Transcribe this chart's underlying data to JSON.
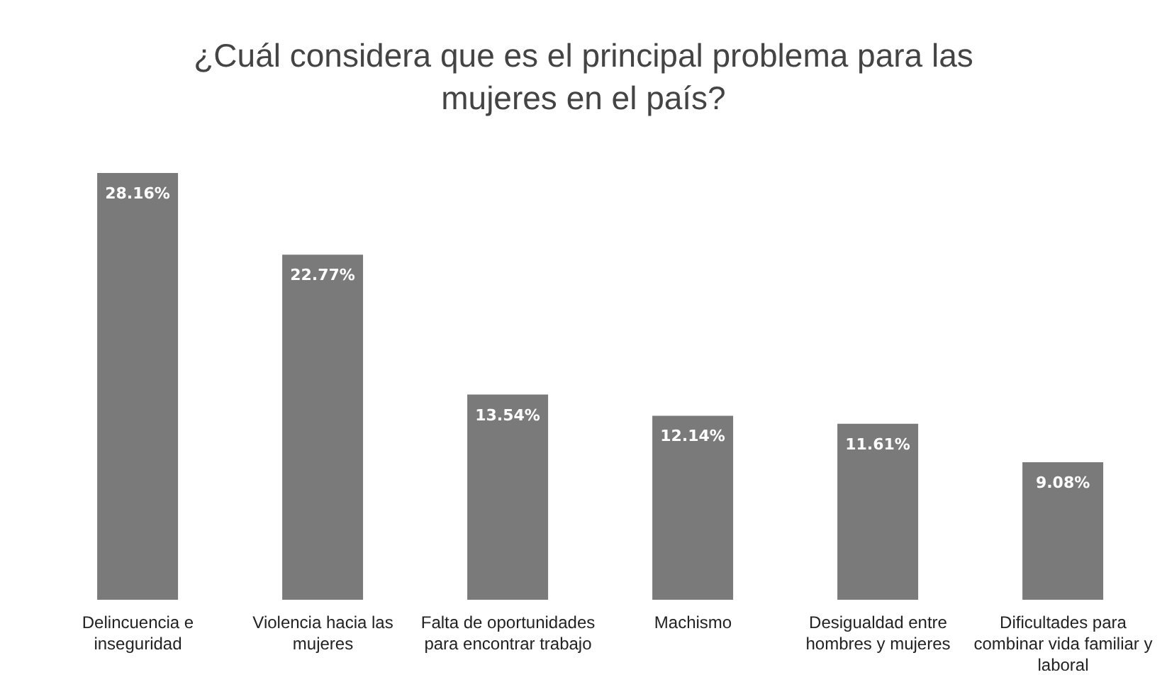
{
  "chart_data": {
    "type": "bar",
    "title": "¿Cuál considera que es el principal problema para las mujeres en el país?",
    "categories": [
      "Delincuencia e inseguridad",
      "Violencia hacia las mujeres",
      "Falta de oportunidades para encontrar trabajo",
      "Machismo",
      "Desigualdad entre hombres y mujeres",
      "Dificultades para combinar vida familiar y laboral"
    ],
    "values": [
      28.16,
      22.77,
      13.54,
      12.14,
      11.61,
      9.08
    ],
    "value_labels": [
      "28.16%",
      "22.77%",
      "13.54%",
      "12.14%",
      "11.61%",
      "9.08%"
    ],
    "color": "#7a7a7a",
    "grid": false,
    "legend": false
  }
}
